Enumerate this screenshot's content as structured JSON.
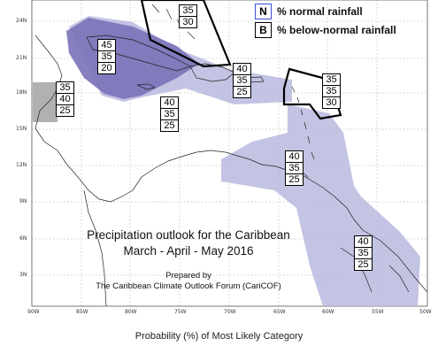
{
  "legend": {
    "items": [
      {
        "key": "N",
        "label": "% normal rainfall"
      },
      {
        "key": "B",
        "label": "% below-normal rainfall"
      }
    ]
  },
  "map_text": {
    "title_line1": "Precipitation outlook for the Caribbean",
    "title_line2": "March - April - May 2016",
    "prepared_by": "Prepared by",
    "organization": "The Caribbean Climate Outlook Forum (CariCOF)"
  },
  "axes": {
    "lon_labels": [
      "90W",
      "85W",
      "80W",
      "75W",
      "70W",
      "65W",
      "60W",
      "55W",
      "50W"
    ],
    "lat_labels": [
      "24N",
      "21N",
      "18N",
      "15N",
      "12N",
      "9N",
      "6N",
      "3N"
    ]
  },
  "caption": "Probability (%) of Most Likely Category",
  "regions": [
    {
      "name": "bahamas-north",
      "values": [
        "35",
        "30"
      ]
    },
    {
      "name": "cuba-jamaica",
      "values": [
        "45",
        "35",
        "20"
      ]
    },
    {
      "name": "belize-yucatan",
      "values": [
        "35",
        "40",
        "25"
      ]
    },
    {
      "name": "caribbean-sea-west",
      "values": [
        "40",
        "35",
        "25"
      ]
    },
    {
      "name": "hispaniola-puerto-rico",
      "values": [
        "40",
        "35",
        "25"
      ]
    },
    {
      "name": "northern-lesser-antilles",
      "values": [
        "35",
        "35",
        "30"
      ]
    },
    {
      "name": "southern-lesser-antilles",
      "values": [
        "40",
        "35",
        "25"
      ]
    },
    {
      "name": "guianas",
      "values": [
        "40",
        "35",
        "25"
      ]
    }
  ],
  "colors": {
    "light_region": "#b8b8de",
    "dark_region": "#7a72b8",
    "gray_region": "#a8a8a8",
    "coast": "#222222"
  }
}
